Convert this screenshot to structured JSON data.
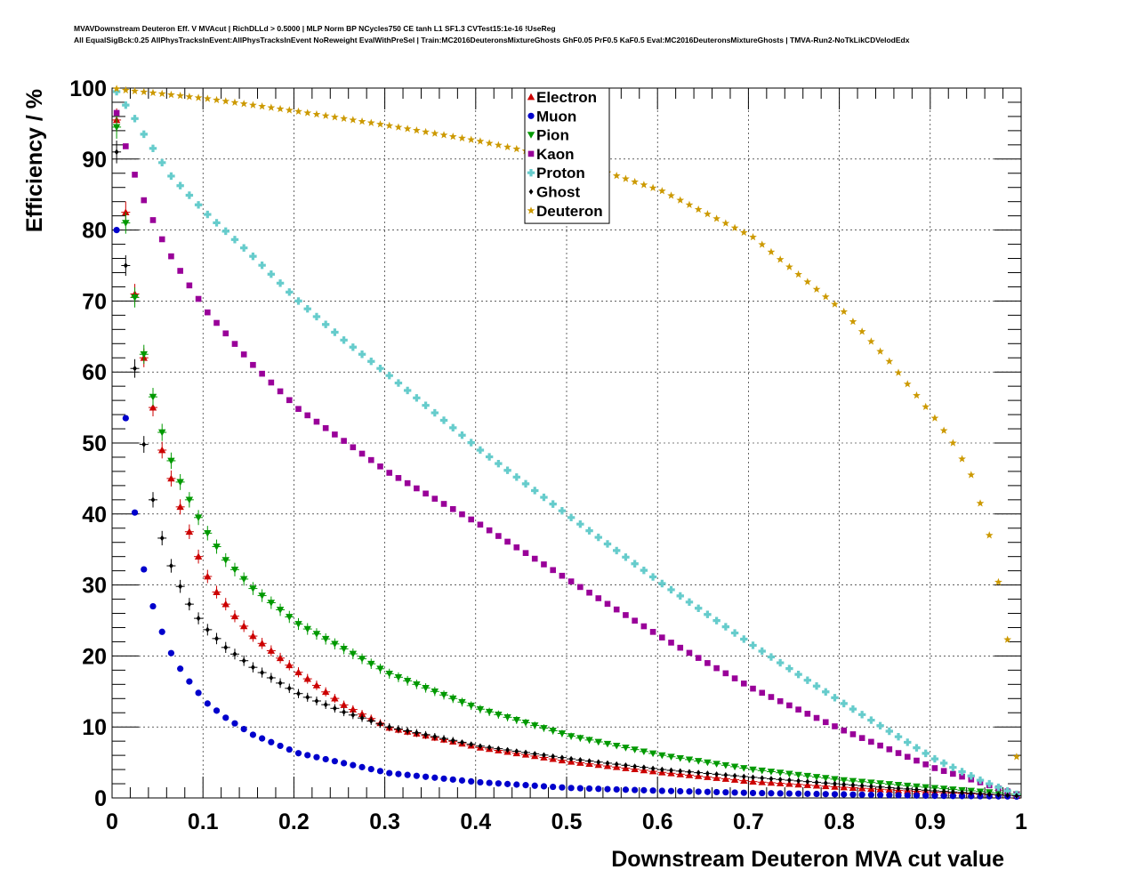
{
  "header": {
    "title_line1": "MVAVDownstream Deuteron Eff. V MVAcut | RichDLLd > 0.5000 | MLP Norm BP NCycles750 CE tanh L1 SF1.3 CVTest15:1e-16 !UseReg",
    "title_line2": "All EqualSigBck:0.25 AllPhysTracksInEvent:AllPhysTracksInEvent NoReweight EvalWithPreSel | Train:MC2016DeuteronsMixtureGhosts GhF0.05 PrF0.5 KaF0.5 Eval:MC2016DeuteronsMixtureGhosts | TMVA-Run2-NoTkLikCDVelodEdx"
  },
  "chart_data": {
    "type": "scatter",
    "xlabel": "Downstream Deuteron MVA cut value",
    "ylabel": "Efficiency / %",
    "xlim": [
      0,
      1
    ],
    "ylim": [
      0,
      100
    ],
    "xticks": [
      "0",
      "0.1",
      "0.2",
      "0.3",
      "0.4",
      "0.5",
      "0.6",
      "0.7",
      "0.8",
      "0.9",
      "1"
    ],
    "yticks": [
      "0",
      "10",
      "20",
      "30",
      "40",
      "50",
      "60",
      "70",
      "80",
      "90",
      "100"
    ],
    "grid": true,
    "legend_position": "top-center",
    "x_step": 0.01,
    "x_start": 0.005,
    "series": [
      {
        "name": "Electron",
        "color": "#cc0000",
        "marker": "triangle-up",
        "errors": true,
        "anchors": [
          [
            0.005,
            95.5
          ],
          [
            0.015,
            82.5
          ],
          [
            0.025,
            71
          ],
          [
            0.035,
            62
          ],
          [
            0.045,
            55
          ],
          [
            0.055,
            49
          ],
          [
            0.065,
            45
          ],
          [
            0.075,
            41
          ],
          [
            0.085,
            37.5
          ],
          [
            0.095,
            34
          ],
          [
            0.105,
            31.2
          ],
          [
            0.115,
            29
          ],
          [
            0.135,
            25.6
          ],
          [
            0.155,
            22.8
          ],
          [
            0.185,
            19.7
          ],
          [
            0.205,
            17.7
          ],
          [
            0.255,
            13.1
          ],
          [
            0.305,
            9.9
          ],
          [
            0.405,
            7.1
          ],
          [
            0.505,
            5.1
          ],
          [
            0.605,
            3.6
          ],
          [
            0.705,
            2.3
          ],
          [
            0.805,
            1.5
          ],
          [
            0.905,
            0.8
          ],
          [
            0.995,
            0.3
          ]
        ]
      },
      {
        "name": "Muon",
        "color": "#0000cc",
        "marker": "circle",
        "errors": false,
        "anchors": [
          [
            0.005,
            80
          ],
          [
            0.015,
            53.5
          ],
          [
            0.025,
            40.2
          ],
          [
            0.035,
            32.2
          ],
          [
            0.045,
            27
          ],
          [
            0.055,
            23.4
          ],
          [
            0.065,
            20.4
          ],
          [
            0.075,
            18.2
          ],
          [
            0.085,
            16.4
          ],
          [
            0.095,
            14.8
          ],
          [
            0.105,
            13.3
          ],
          [
            0.125,
            11.3
          ],
          [
            0.155,
            8.9
          ],
          [
            0.205,
            6.3
          ],
          [
            0.305,
            3.5
          ],
          [
            0.405,
            2.2
          ],
          [
            0.505,
            1.4
          ],
          [
            0.605,
            1.0
          ],
          [
            0.705,
            0.7
          ],
          [
            0.805,
            0.5
          ],
          [
            0.905,
            0.3
          ],
          [
            0.995,
            0.2
          ]
        ]
      },
      {
        "name": "Pion",
        "color": "#009900",
        "marker": "triangle-down",
        "errors": true,
        "anchors": [
          [
            0.005,
            94.5
          ],
          [
            0.015,
            81
          ],
          [
            0.025,
            70.5
          ],
          [
            0.035,
            62.5
          ],
          [
            0.045,
            56.5
          ],
          [
            0.055,
            51.5
          ],
          [
            0.065,
            47.5
          ],
          [
            0.075,
            44.5
          ],
          [
            0.085,
            42
          ],
          [
            0.095,
            39.5
          ],
          [
            0.105,
            37.3
          ],
          [
            0.125,
            33.5
          ],
          [
            0.155,
            29.5
          ],
          [
            0.205,
            24.5
          ],
          [
            0.305,
            17.5
          ],
          [
            0.405,
            12.5
          ],
          [
            0.505,
            8.7
          ],
          [
            0.605,
            6.0
          ],
          [
            0.705,
            4.0
          ],
          [
            0.805,
            2.5
          ],
          [
            0.905,
            1.4
          ],
          [
            0.995,
            0.5
          ]
        ]
      },
      {
        "name": "Kaon",
        "color": "#990099",
        "marker": "square",
        "errors": false,
        "anchors": [
          [
            0.005,
            96.5
          ],
          [
            0.015,
            91.8
          ],
          [
            0.025,
            87.8
          ],
          [
            0.035,
            84.2
          ],
          [
            0.045,
            81.4
          ],
          [
            0.055,
            78.7
          ],
          [
            0.065,
            76.3
          ],
          [
            0.085,
            72.2
          ],
          [
            0.105,
            68.4
          ],
          [
            0.155,
            61
          ],
          [
            0.205,
            54.8
          ],
          [
            0.305,
            45.8
          ],
          [
            0.405,
            38.5
          ],
          [
            0.505,
            30.5
          ],
          [
            0.605,
            22.6
          ],
          [
            0.705,
            15.4
          ],
          [
            0.805,
            9.5
          ],
          [
            0.905,
            4.2
          ],
          [
            0.955,
            2.2
          ],
          [
            0.995,
            0.5
          ]
        ]
      },
      {
        "name": "Proton",
        "color": "#66cccc",
        "marker": "cross",
        "errors": false,
        "anchors": [
          [
            0.005,
            99.5
          ],
          [
            0.015,
            97.6
          ],
          [
            0.025,
            95.7
          ],
          [
            0.035,
            93.5
          ],
          [
            0.045,
            91.5
          ],
          [
            0.055,
            89.5
          ],
          [
            0.065,
            87.6
          ],
          [
            0.105,
            82.2
          ],
          [
            0.155,
            76.3
          ],
          [
            0.205,
            70
          ],
          [
            0.255,
            64.5
          ],
          [
            0.305,
            59.5
          ],
          [
            0.405,
            49
          ],
          [
            0.505,
            39.5
          ],
          [
            0.605,
            30.2
          ],
          [
            0.705,
            21.5
          ],
          [
            0.805,
            13.3
          ],
          [
            0.905,
            5.5
          ],
          [
            0.955,
            2.5
          ],
          [
            0.995,
            0.5
          ]
        ]
      },
      {
        "name": "Ghost",
        "color": "#000000",
        "marker": "diamond",
        "errors": true,
        "anchors": [
          [
            0.005,
            91
          ],
          [
            0.015,
            75
          ],
          [
            0.025,
            60.5
          ],
          [
            0.035,
            49.8
          ],
          [
            0.045,
            42
          ],
          [
            0.055,
            36.6
          ],
          [
            0.065,
            32.7
          ],
          [
            0.075,
            29.8
          ],
          [
            0.085,
            27.3
          ],
          [
            0.095,
            25.3
          ],
          [
            0.105,
            23.7
          ],
          [
            0.125,
            21.2
          ],
          [
            0.155,
            18.4
          ],
          [
            0.205,
            14.7
          ],
          [
            0.255,
            12.1
          ],
          [
            0.305,
            10
          ],
          [
            0.405,
            7.3
          ],
          [
            0.505,
            5.5
          ],
          [
            0.605,
            4.0
          ],
          [
            0.705,
            2.9
          ],
          [
            0.805,
            1.9
          ],
          [
            0.905,
            1.0
          ],
          [
            0.995,
            0.3
          ]
        ]
      },
      {
        "name": "Deuteron",
        "color": "#cc9900",
        "marker": "star",
        "errors": false,
        "anchors": [
          [
            0.005,
            99.9
          ],
          [
            0.015,
            99.7
          ],
          [
            0.055,
            99.2
          ],
          [
            0.105,
            98.5
          ],
          [
            0.205,
            96.7
          ],
          [
            0.305,
            94.7
          ],
          [
            0.405,
            92.5
          ],
          [
            0.505,
            89.8
          ],
          [
            0.605,
            85.5
          ],
          [
            0.705,
            79
          ],
          [
            0.805,
            68.5
          ],
          [
            0.855,
            61.5
          ],
          [
            0.905,
            53.5
          ],
          [
            0.925,
            50
          ],
          [
            0.945,
            45.5
          ],
          [
            0.955,
            41.5
          ],
          [
            0.965,
            37
          ],
          [
            0.975,
            30.4
          ],
          [
            0.985,
            22.3
          ],
          [
            0.995,
            5.8
          ]
        ]
      }
    ]
  }
}
